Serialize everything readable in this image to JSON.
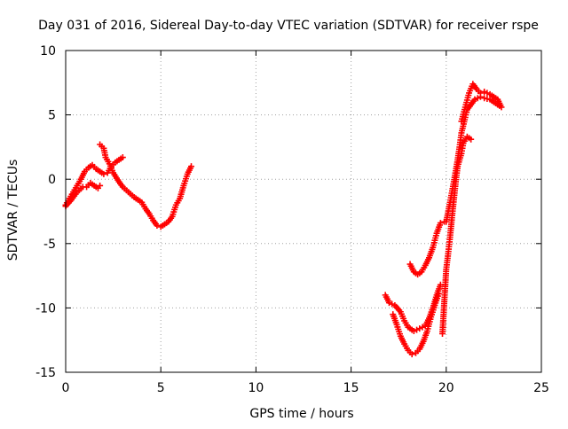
{
  "chart_data": {
    "type": "scatter",
    "title": "Day 031 of 2016, Sidereal Day-to-day VTEC variation (SDTVAR) for receiver rspe",
    "xlabel": "GPS time / hours",
    "ylabel": "SDTVAR / TECUs",
    "xlim": [
      0,
      25
    ],
    "ylim": [
      -15,
      10
    ],
    "x_ticks": [
      0,
      5,
      10,
      15,
      20,
      25
    ],
    "y_ticks": [
      -15,
      -10,
      -5,
      0,
      5,
      10
    ],
    "x_tick_labels": [
      "0",
      "5",
      "10",
      "15",
      "20",
      "25"
    ],
    "y_tick_labels": [
      "-15",
      "-10",
      "-5",
      "0",
      "5",
      "10"
    ],
    "grid": true,
    "marker": "+",
    "color": "#ff0000",
    "series": [
      {
        "values": [
          [
            0.0,
            -2.1
          ],
          [
            0.3,
            -1.6
          ],
          [
            0.6,
            -1.0
          ],
          [
            0.9,
            -0.6
          ],
          [
            1.1,
            -0.6
          ],
          [
            1.3,
            -0.3
          ],
          [
            1.5,
            -0.5
          ],
          [
            1.7,
            -0.7
          ],
          [
            1.8,
            -0.5
          ]
        ]
      },
      {
        "values": [
          [
            0.0,
            -2.0
          ],
          [
            0.2,
            -1.5
          ],
          [
            0.4,
            -1.0
          ],
          [
            0.6,
            -0.5
          ],
          [
            0.8,
            0.0
          ],
          [
            1.0,
            0.6
          ],
          [
            1.2,
            0.9
          ],
          [
            1.4,
            1.1
          ],
          [
            1.6,
            0.8
          ],
          [
            1.8,
            0.6
          ],
          [
            2.0,
            0.4
          ],
          [
            2.2,
            0.5
          ],
          [
            2.4,
            1.0
          ],
          [
            2.6,
            1.3
          ],
          [
            2.8,
            1.5
          ],
          [
            3.0,
            1.7
          ]
        ]
      },
      {
        "values": [
          [
            1.8,
            2.7
          ],
          [
            2.0,
            2.4
          ],
          [
            2.1,
            1.7
          ],
          [
            2.3,
            1.2
          ],
          [
            2.5,
            0.5
          ],
          [
            2.8,
            -0.2
          ],
          [
            3.0,
            -0.6
          ],
          [
            3.3,
            -1.0
          ],
          [
            3.6,
            -1.4
          ],
          [
            3.8,
            -1.6
          ],
          [
            4.0,
            -1.8
          ],
          [
            4.2,
            -2.3
          ],
          [
            4.4,
            -2.7
          ],
          [
            4.6,
            -3.2
          ],
          [
            4.8,
            -3.6
          ],
          [
            5.0,
            -3.7
          ],
          [
            5.2,
            -3.5
          ],
          [
            5.4,
            -3.3
          ],
          [
            5.6,
            -2.9
          ],
          [
            5.8,
            -2.0
          ],
          [
            6.0,
            -1.5
          ],
          [
            6.2,
            -0.5
          ],
          [
            6.4,
            0.4
          ],
          [
            6.6,
            1.0
          ]
        ]
      },
      {
        "values": [
          [
            16.8,
            -9.0
          ],
          [
            17.0,
            -9.6
          ],
          [
            17.3,
            -9.8
          ],
          [
            17.6,
            -10.3
          ],
          [
            17.8,
            -11.0
          ],
          [
            18.0,
            -11.5
          ],
          [
            18.3,
            -11.8
          ],
          [
            18.6,
            -11.6
          ],
          [
            18.9,
            -11.4
          ],
          [
            19.1,
            -10.8
          ],
          [
            19.3,
            -10.0
          ],
          [
            19.5,
            -9.0
          ],
          [
            19.7,
            -8.2
          ]
        ]
      },
      {
        "values": [
          [
            17.2,
            -10.5
          ],
          [
            17.4,
            -11.3
          ],
          [
            17.6,
            -12.2
          ],
          [
            17.8,
            -12.8
          ],
          [
            18.0,
            -13.3
          ],
          [
            18.2,
            -13.6
          ],
          [
            18.4,
            -13.5
          ],
          [
            18.6,
            -13.2
          ],
          [
            18.8,
            -12.6
          ],
          [
            19.0,
            -11.8
          ],
          [
            19.2,
            -10.7
          ],
          [
            19.4,
            -9.8
          ],
          [
            19.6,
            -8.9
          ]
        ]
      },
      {
        "values": [
          [
            18.1,
            -6.6
          ],
          [
            18.3,
            -7.2
          ],
          [
            18.5,
            -7.4
          ],
          [
            18.7,
            -7.2
          ],
          [
            18.9,
            -6.7
          ],
          [
            19.1,
            -6.1
          ],
          [
            19.3,
            -5.3
          ],
          [
            19.5,
            -4.2
          ],
          [
            19.7,
            -3.4
          ],
          [
            19.9,
            -3.3
          ]
        ]
      },
      {
        "values": [
          [
            19.8,
            -12.0
          ],
          [
            19.9,
            -9.5
          ],
          [
            20.0,
            -7.0
          ],
          [
            20.1,
            -5.8
          ],
          [
            20.2,
            -4.5
          ],
          [
            20.3,
            -3.0
          ],
          [
            20.4,
            -1.6
          ],
          [
            20.5,
            -0.2
          ],
          [
            20.6,
            1.0
          ],
          [
            20.8,
            2.0
          ],
          [
            20.9,
            2.8
          ],
          [
            21.1,
            3.3
          ],
          [
            21.3,
            3.1
          ]
        ]
      },
      {
        "values": [
          [
            20.0,
            -3.3
          ],
          [
            20.2,
            -1.8
          ],
          [
            20.4,
            -0.2
          ],
          [
            20.6,
            1.5
          ],
          [
            20.7,
            2.5
          ],
          [
            20.8,
            3.6
          ],
          [
            21.0,
            4.8
          ],
          [
            21.1,
            5.4
          ],
          [
            21.3,
            5.8
          ],
          [
            21.5,
            6.2
          ],
          [
            21.8,
            6.4
          ],
          [
            22.0,
            6.3
          ],
          [
            22.3,
            6.2
          ],
          [
            22.6,
            5.9
          ],
          [
            22.8,
            5.7
          ]
        ]
      },
      {
        "values": [
          [
            20.8,
            4.5
          ],
          [
            21.0,
            5.6
          ],
          [
            21.2,
            6.7
          ],
          [
            21.4,
            7.4
          ],
          [
            21.6,
            7.0
          ],
          [
            21.8,
            6.7
          ],
          [
            22.0,
            6.8
          ],
          [
            22.3,
            6.6
          ],
          [
            22.5,
            6.4
          ],
          [
            22.7,
            6.2
          ],
          [
            22.9,
            5.6
          ]
        ]
      }
    ]
  }
}
